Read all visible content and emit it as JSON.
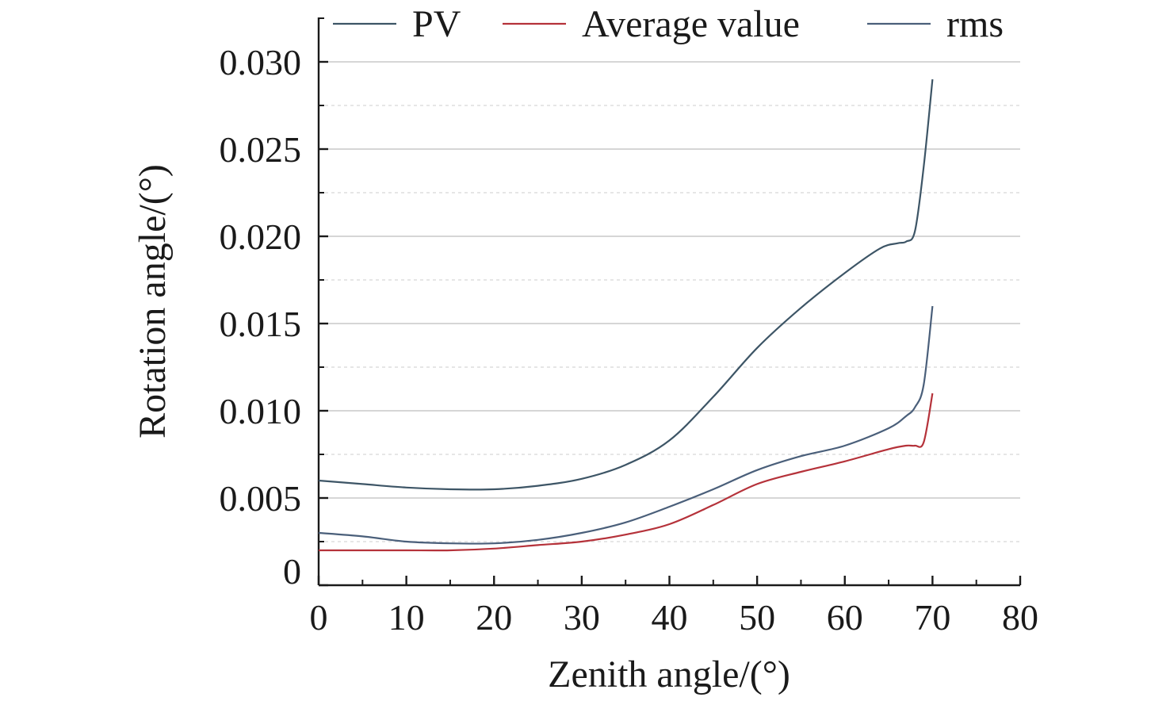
{
  "chart_data": {
    "type": "line",
    "title": "",
    "xlabel": "Zenith angle/(°)",
    "ylabel": "Rotation angle/(°)",
    "xlim": [
      0,
      80
    ],
    "ylim": [
      0,
      0.03
    ],
    "x_ticks": [
      0,
      10,
      20,
      30,
      40,
      50,
      60,
      70,
      80
    ],
    "x_tick_labels": [
      "0",
      "10",
      "20",
      "30",
      "40",
      "50",
      "60",
      "70",
      "80"
    ],
    "y_ticks": [
      0,
      0.005,
      0.01,
      0.015,
      0.02,
      0.025,
      0.03
    ],
    "y_tick_labels": [
      "0",
      "0.005",
      "0.010",
      "0.015",
      "0.020",
      "0.025",
      "0.030"
    ],
    "grid": true,
    "legend_position": "top",
    "series": [
      {
        "name": "PV",
        "color": "#3d5566",
        "x": [
          0,
          5,
          10,
          15,
          20,
          25,
          30,
          35,
          40,
          45,
          50,
          55,
          60,
          64,
          66,
          67,
          68,
          69,
          70
        ],
        "y": [
          0.006,
          0.0058,
          0.0056,
          0.0055,
          0.0055,
          0.0057,
          0.0061,
          0.0069,
          0.0083,
          0.0108,
          0.0136,
          0.0159,
          0.0179,
          0.0193,
          0.0196,
          0.0197,
          0.0203,
          0.024,
          0.029
        ]
      },
      {
        "name": "Average value",
        "color": "#b5323a",
        "x": [
          0,
          5,
          10,
          15,
          20,
          25,
          30,
          35,
          40,
          45,
          50,
          55,
          60,
          65,
          67,
          68,
          69,
          70
        ],
        "y": [
          0.002,
          0.002,
          0.002,
          0.002,
          0.0021,
          0.0023,
          0.0025,
          0.0029,
          0.0035,
          0.0046,
          0.0058,
          0.0065,
          0.0071,
          0.0078,
          0.008,
          0.008,
          0.0082,
          0.011
        ]
      },
      {
        "name": "rms",
        "color": "#4a5f7a",
        "x": [
          0,
          5,
          10,
          15,
          20,
          25,
          30,
          35,
          40,
          45,
          50,
          55,
          60,
          65,
          67,
          68,
          69,
          70
        ],
        "y": [
          0.003,
          0.0028,
          0.0025,
          0.0024,
          0.0024,
          0.0026,
          0.003,
          0.0036,
          0.0045,
          0.0055,
          0.0066,
          0.0074,
          0.008,
          0.009,
          0.0097,
          0.0102,
          0.0115,
          0.016
        ]
      }
    ]
  }
}
